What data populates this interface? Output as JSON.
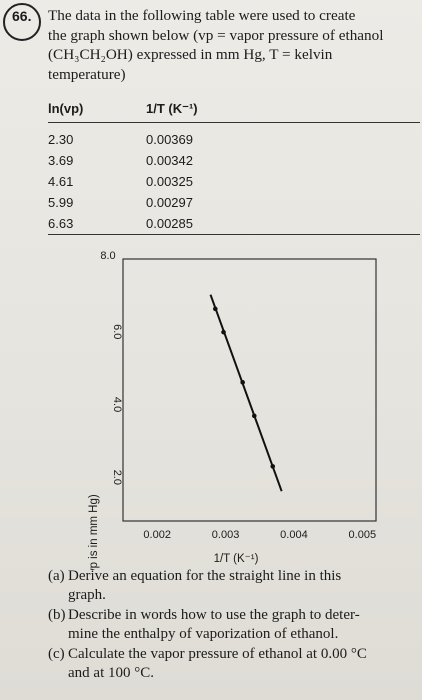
{
  "question": {
    "number": "66.",
    "intro_lines": [
      "The data in the following table were used to create",
      "the graph shown below (vp = vapor pressure of ethanol",
      "(CH₃CH₂OH) expressed in mm Hg, T = kelvin",
      "temperature)"
    ]
  },
  "table": {
    "headers": [
      "ln(vp)",
      "1/T (K⁻¹)"
    ],
    "rows": [
      [
        "2.30",
        "0.00369"
      ],
      [
        "3.69",
        "0.00342"
      ],
      [
        "4.61",
        "0.00325"
      ],
      [
        "5.99",
        "0.00297"
      ],
      [
        "6.63",
        "0.00285"
      ]
    ]
  },
  "chart_data": {
    "type": "line",
    "xlabel": "1/T (K⁻¹)",
    "ylabel": "ln vp (where vp is in mm Hg)",
    "x_ticks": [
      "0.002",
      "0.003",
      "0.004",
      "0.005"
    ],
    "y_ticks": [
      "8.0",
      "6.0",
      "4.0",
      "2.0"
    ],
    "xlim": [
      0.0015,
      0.0052
    ],
    "ylim": [
      0.8,
      8.0
    ],
    "series": [
      {
        "x": [
          0.00369,
          0.00342,
          0.00325,
          0.00297,
          0.00285
        ],
        "y": [
          2.3,
          3.69,
          4.61,
          5.99,
          6.63
        ],
        "line_x": [
          0.00278,
          0.00382
        ],
        "line_y": [
          7.02,
          1.62
        ]
      }
    ]
  },
  "parts": [
    {
      "label": "(a)",
      "lines": [
        "Derive an equation for the straight line in this",
        "graph."
      ]
    },
    {
      "label": "(b)",
      "lines": [
        "Describe in words how to use the graph to deter-",
        "mine the enthalpy of vaporization of ethanol."
      ]
    },
    {
      "label": "(c)",
      "lines": [
        "Calculate the vapor pressure of ethanol at 0.00 °C",
        "and at 100 °C."
      ]
    }
  ]
}
